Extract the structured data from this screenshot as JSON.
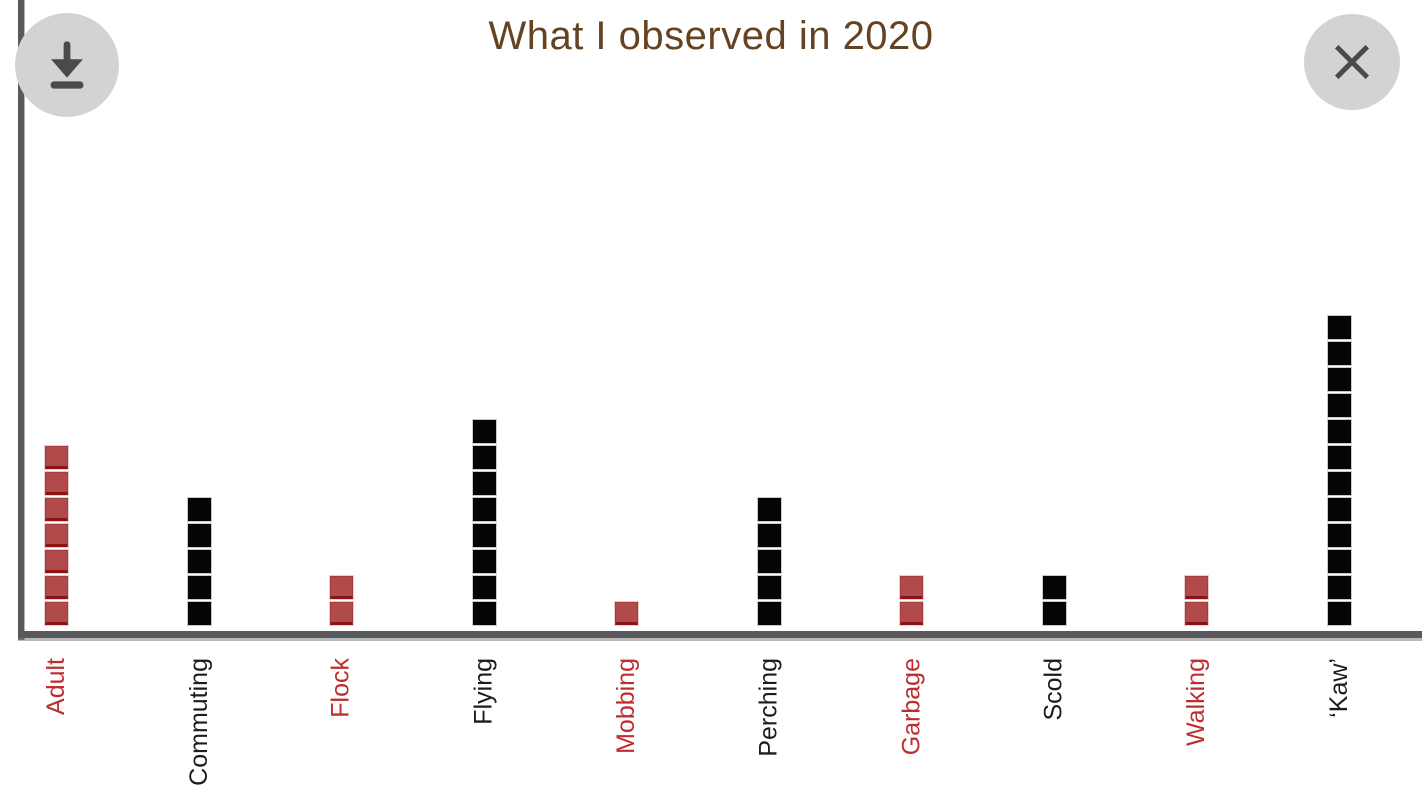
{
  "header": {
    "title": "What I observed in 2020"
  },
  "toolbar": {
    "download_button": {
      "icon": "download-icon",
      "label": "Download chart"
    },
    "close_button": {
      "icon": "close-icon",
      "label": "Close"
    }
  },
  "colors": {
    "title": "#654322",
    "axis": "#59595b",
    "button_circle": "#d3d3d3",
    "button_glyph": "#4a4a4a",
    "red_fill": "#b14a4a",
    "red_edge": "#8f1212",
    "black_fill": "#050505",
    "red_label": "#bf2e2e",
    "black_label": "#1c1c1c"
  },
  "chart_data": {
    "type": "bar",
    "variant": "stacked-unit-squares",
    "title": "What I observed in 2020",
    "xlabel": "",
    "ylabel": "",
    "grid": false,
    "legend": "none",
    "unit_per_square": 1,
    "ylim": [
      0,
      12
    ],
    "categories": [
      "Adult",
      "Commuting",
      "Flock",
      "Flying",
      "Mobbing",
      "Perching",
      "Garbage",
      "Scold",
      "Walking",
      "‘Kaw’"
    ],
    "values": [
      7,
      5,
      2,
      8,
      1,
      5,
      2,
      2,
      2,
      12
    ],
    "bar_colors": [
      "red",
      "black",
      "red",
      "black",
      "red",
      "black",
      "red",
      "black",
      "red",
      "black"
    ],
    "label_colors": [
      "red",
      "black",
      "red",
      "black",
      "red",
      "black",
      "red",
      "black",
      "red",
      "black"
    ]
  }
}
